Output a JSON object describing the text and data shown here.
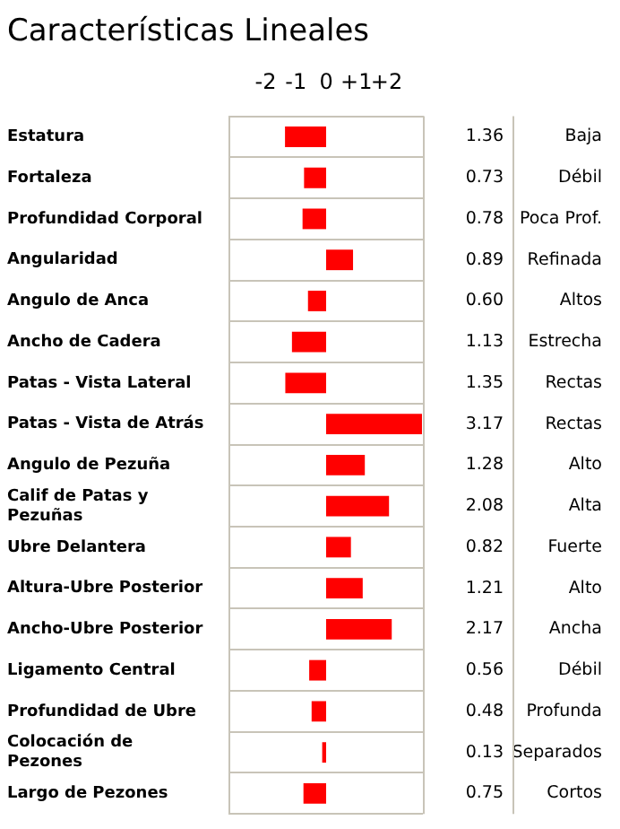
{
  "chart_data": {
    "type": "bar",
    "orientation": "horizontal",
    "title": "Características Lineales",
    "categories": [
      "Estatura",
      "Fortaleza",
      "Profundidad Corporal",
      "Angularidad",
      "Angulo de Anca",
      "Ancho de Cadera",
      "Patas - Vista Lateral",
      "Patas - Vista de Atrás",
      "Angulo de Pezuña",
      "Calif de Patas y Pezuñas",
      "Ubre Delantera",
      "Altura-Ubre Posterior",
      "Ancho-Ubre Posterior",
      "Ligamento Central",
      "Profundidad de Ubre",
      "Colocación de Pezones",
      "Largo de Pezones"
    ],
    "values": [
      1.36,
      0.73,
      0.78,
      0.89,
      0.6,
      1.13,
      1.35,
      3.17,
      1.28,
      2.08,
      0.82,
      1.21,
      2.17,
      0.56,
      0.48,
      0.13,
      0.75
    ],
    "base": [
      -1.36,
      -0.73,
      -0.78,
      0,
      -0.6,
      -1.13,
      -1.35,
      0,
      0,
      0,
      0,
      0,
      0,
      -0.56,
      -0.48,
      -0.13,
      -0.75
    ],
    "value_labels": [
      "1.36",
      "0.73",
      "0.78",
      "0.89",
      "0.60",
      "1.13",
      "1.35",
      "3.17",
      "1.28",
      "2.08",
      "0.82",
      "1.21",
      "2.17",
      "0.56",
      "0.48",
      "0.13",
      "0.75"
    ],
    "color": "#ff0000",
    "xlim": [
      -3.2,
      3.2
    ],
    "xticks": [
      {
        "value": -2,
        "label": "-2"
      },
      {
        "value": -1,
        "label": "-1"
      },
      0,
      {
        "value": 1,
        "label": "+1"
      },
      {
        "value": 2,
        "label": "+2"
      }
    ],
    "grid": "y",
    "annotations": [
      "Baja",
      "Débil",
      "Poca Prof.",
      "Refinada",
      "Altos",
      "Estrecha",
      "Rectas",
      "Rectas",
      "Alto",
      "Alta",
      "Fuerte",
      "Alto",
      "Ancha",
      "Débil",
      "Profunda",
      "Separados",
      "Cortos"
    ]
  }
}
